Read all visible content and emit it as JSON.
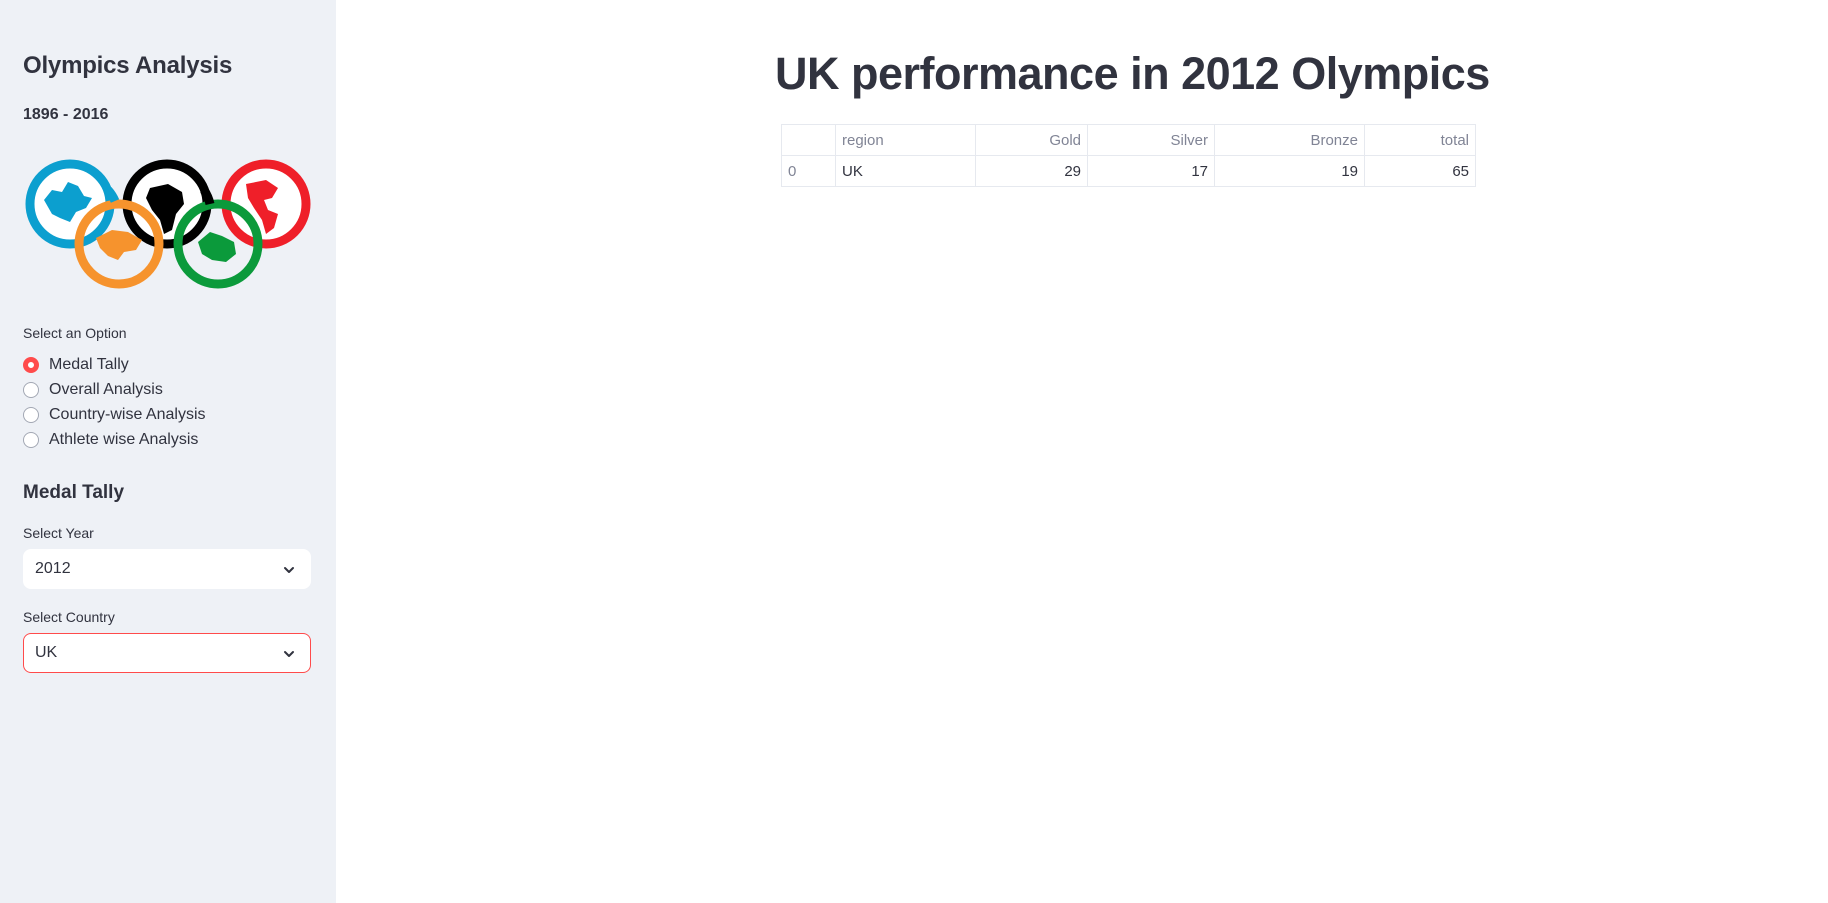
{
  "sidebar": {
    "title": "Olympics Analysis",
    "subtitle": "1896 - 2016",
    "option_label": "Select an Option",
    "options": [
      "Medal Tally",
      "Overall Analysis",
      "Country-wise Analysis",
      "Athlete wise Analysis"
    ],
    "selected_option": "Medal Tally",
    "section_title": "Medal Tally",
    "year_label": "Select Year",
    "year_value": "2012",
    "country_label": "Select Country",
    "country_value": "UK"
  },
  "colors": {
    "accent": "#ff4b4b",
    "sidebar_bg": "#eef1f6",
    "ring_blue": "#0c9fcf",
    "ring_black": "#000000",
    "ring_red": "#ef1f29",
    "ring_orange": "#f6932d",
    "ring_green": "#0b9a3b"
  },
  "main": {
    "title": "UK performance in 2012 Olympics",
    "table": {
      "columns": [
        "",
        "region",
        "Gold",
        "Silver",
        "Bronze",
        "total"
      ],
      "rows": [
        [
          "0",
          "UK",
          "29",
          "17",
          "19",
          "65"
        ]
      ]
    }
  }
}
